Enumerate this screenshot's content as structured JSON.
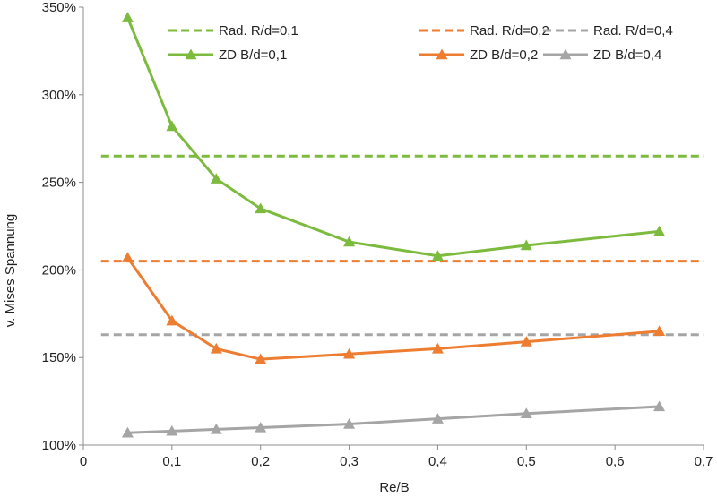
{
  "chart_data": {
    "type": "line",
    "xlabel": "Re/B",
    "ylabel": "v. Mises Spannung",
    "xlim": [
      0,
      0.7
    ],
    "ylim": [
      100,
      350
    ],
    "x_ticks": [
      0,
      0.1,
      0.2,
      0.3,
      0.4,
      0.5,
      0.6,
      0.7
    ],
    "x_tick_labels": [
      "0",
      "0,1",
      "0,2",
      "0,3",
      "0,4",
      "0,5",
      "0,6",
      "0,7"
    ],
    "y_ticks": [
      100,
      150,
      200,
      250,
      300,
      350
    ],
    "y_tick_labels": [
      "100%",
      "150%",
      "200%",
      "250%",
      "300%",
      "350%"
    ],
    "grid": false,
    "legend_position": "top",
    "legend_entries": [
      {
        "label": "Rad. R/d=0,1",
        "color": "#7dbb3f",
        "style": "dashed"
      },
      {
        "label": "Rad. R/d=0,2",
        "color": "#ed7d31",
        "style": "dashed"
      },
      {
        "label": "Rad. R/d=0,4",
        "color": "#a5a5a5",
        "style": "dashed"
      },
      {
        "label": "ZD    B/d=0,1",
        "color": "#7dbb3f",
        "style": "solid-triangle"
      },
      {
        "label": "ZD    B/d=0,2",
        "color": "#ed7d31",
        "style": "solid-triangle"
      },
      {
        "label": "ZD    B/d=0,4",
        "color": "#a5a5a5",
        "style": "solid-triangle"
      }
    ],
    "reference_lines": [
      {
        "name": "Rad. R/d=0,1",
        "color": "#7dbb3f",
        "y": 265,
        "x_range": [
          0.02,
          0.7
        ]
      },
      {
        "name": "Rad. R/d=0,2",
        "color": "#ed7d31",
        "y": 205,
        "x_range": [
          0.02,
          0.7
        ]
      },
      {
        "name": "Rad. R/d=0,4",
        "color": "#a5a5a5",
        "y": 163,
        "x_range": [
          0.02,
          0.7
        ]
      }
    ],
    "x": [
      0.05,
      0.1,
      0.15,
      0.2,
      0.3,
      0.4,
      0.5,
      0.65
    ],
    "series": [
      {
        "name": "ZD    B/d=0,1",
        "color": "#7dbb3f",
        "values": [
          344,
          282,
          252,
          235,
          216,
          208,
          214,
          222
        ]
      },
      {
        "name": "ZD    B/d=0,2",
        "color": "#ed7d31",
        "values": [
          207,
          171,
          155,
          149,
          152,
          155,
          159,
          165
        ]
      },
      {
        "name": "ZD    B/d=0,4",
        "color": "#a5a5a5",
        "values": [
          107,
          108,
          109,
          110,
          112,
          115,
          118,
          122
        ]
      }
    ]
  }
}
